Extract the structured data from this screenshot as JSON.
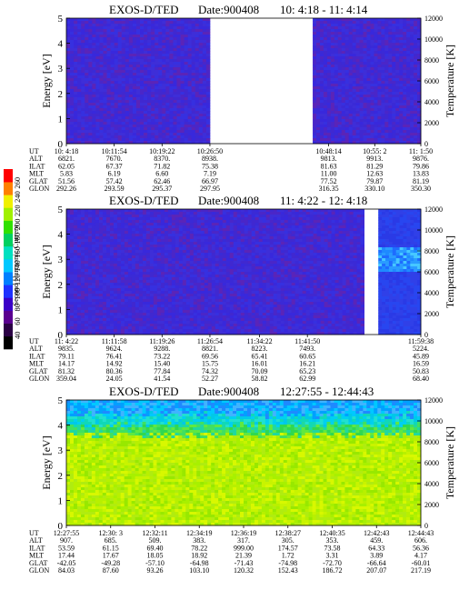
{
  "chart_data": [
    {
      "type": "heatmap",
      "title": "EXOS-D/TED",
      "date_label": "Date:900408",
      "time_range": "10: 4:18 - 11: 4:14",
      "ylabel": "Energy [eV]",
      "y2label": "Temperature [K]",
      "yticks": [
        "0",
        "1",
        "2",
        "3",
        "4",
        "5"
      ],
      "y2ticks": [
        "0",
        "2000",
        "4000",
        "6000",
        "8000",
        "10000",
        "12000"
      ],
      "ylim": [
        0,
        5
      ],
      "y2lim": [
        0,
        12000
      ],
      "data_segments": [
        {
          "from": 0.0,
          "to": 0.405,
          "profile": "low"
        },
        {
          "from": 0.695,
          "to": 1.0,
          "profile": "low"
        }
      ],
      "orbit": {
        "rows": [
          "UT",
          "ALT",
          "ILAT",
          "MLT",
          "GLAT",
          "GLON"
        ],
        "columns": [
          {
            "frac": 0.0,
            "values": [
              "10: 4:18",
              "6821.",
              "62.05",
              "5.83",
              "51.56",
              "292.26"
            ]
          },
          {
            "frac": 0.135,
            "values": [
              "10:11:54",
              "7670.",
              "67.37",
              "6.19",
              "57.42",
              "293.59"
            ]
          },
          {
            "frac": 0.27,
            "values": [
              "10:19:22",
              "8370.",
              "71.82",
              "6.60",
              "62.46",
              "295.37"
            ]
          },
          {
            "frac": 0.405,
            "values": [
              "10:26:50",
              "8938.",
              "75.38",
              "7.19",
              "66.97",
              "297.95"
            ]
          },
          {
            "frac": 0.74,
            "values": [
              "10:48:14",
              "9813.",
              "81.63",
              "11.00",
              "77.52",
              "316.35"
            ]
          },
          {
            "frac": 0.87,
            "values": [
              "10:55: 2",
              "9913.",
              "81.29",
              "12.63",
              "79.87",
              "330.10"
            ]
          },
          {
            "frac": 1.0,
            "values": [
              "11: 1:50",
              "9876.",
              "79.86",
              "13.83",
              "81.19",
              "350.30"
            ]
          }
        ]
      }
    },
    {
      "type": "heatmap",
      "title": "EXOS-D/TED",
      "date_label": "Date:900408",
      "time_range": "11: 4:22 - 12: 4:18",
      "ylabel": "Energy [eV]",
      "y2label": "Temperature [K]",
      "yticks": [
        "0",
        "1",
        "2",
        "3",
        "4",
        "5"
      ],
      "y2ticks": [
        "0",
        "2000",
        "4000",
        "6000",
        "8000",
        "10000",
        "12000"
      ],
      "ylim": [
        0,
        5
      ],
      "y2lim": [
        0,
        12000
      ],
      "data_segments": [
        {
          "from": 0.0,
          "to": 0.84,
          "profile": "low"
        },
        {
          "from": 0.88,
          "to": 1.0,
          "profile": "hot"
        }
      ],
      "orbit": {
        "rows": [
          "UT",
          "ALT",
          "ILAT",
          "MLT",
          "GLAT",
          "GLON"
        ],
        "columns": [
          {
            "frac": 0.0,
            "values": [
              "11: 4:22",
              "9835.",
              "79.11",
              "14.17",
              "81.32",
              "359.04"
            ]
          },
          {
            "frac": 0.135,
            "values": [
              "11:11:58",
              "9624.",
              "76.41",
              "14.92",
              "80.36",
              "24.05"
            ]
          },
          {
            "frac": 0.27,
            "values": [
              "11:19:26",
              "9288.",
              "73.22",
              "15.40",
              "77.84",
              "41.54"
            ]
          },
          {
            "frac": 0.405,
            "values": [
              "11:26:54",
              "8821.",
              "69.56",
              "15.75",
              "74.32",
              "52.27"
            ]
          },
          {
            "frac": 0.545,
            "values": [
              "11:34:22",
              "8223.",
              "65.41",
              "16.01",
              "70.09",
              "58.82"
            ]
          },
          {
            "frac": 0.68,
            "values": [
              "11:41:50",
              "7493.",
              "60.65",
              "16.21",
              "65.23",
              "62.99"
            ]
          },
          {
            "frac": 1.0,
            "values": [
              "11:59:38",
              "5224.",
              "45.89",
              "16.59",
              "50.83",
              "68.40"
            ]
          }
        ]
      }
    },
    {
      "type": "heatmap",
      "title": "EXOS-D/TED",
      "date_label": "Date:900408",
      "time_range": "12:27:55 - 12:44:43",
      "ylabel": "Energy [eV]",
      "y2label": "Temperature [K]",
      "yticks": [
        "0",
        "1",
        "2",
        "3",
        "4",
        "5"
      ],
      "y2ticks": [
        "0",
        "2000",
        "4000",
        "6000",
        "8000",
        "10000",
        "12000"
      ],
      "ylim": [
        0,
        5
      ],
      "y2lim": [
        0,
        12000
      ],
      "data_segments": [
        {
          "from": 0.0,
          "to": 1.0,
          "profile": "warm"
        }
      ],
      "orbit": {
        "rows": [
          "UT",
          "ALT",
          "ILAT",
          "MLT",
          "GLAT",
          "GLON"
        ],
        "columns": [
          {
            "frac": 0.0,
            "values": [
              "12:27:55",
              "907.",
              "53.59",
              "17.44",
              "-42.05",
              "84.03"
            ]
          },
          {
            "frac": 0.125,
            "values": [
              "12:30: 3",
              "685.",
              "61.15",
              "17.67",
              "-49.28",
              "87.60"
            ]
          },
          {
            "frac": 0.25,
            "values": [
              "12:32:11",
              "509.",
              "69.40",
              "18.05",
              "-57.10",
              "93.26"
            ]
          },
          {
            "frac": 0.375,
            "values": [
              "12:34:19",
              "383.",
              "78.22",
              "18.92",
              "-64.98",
              "103.10"
            ]
          },
          {
            "frac": 0.5,
            "values": [
              "12:36:19",
              "317.",
              "999.00",
              "21.39",
              "-71.43",
              "120.32"
            ]
          },
          {
            "frac": 0.625,
            "values": [
              "12:38:27",
              "305.",
              "174.57",
              "1.72",
              "-74.98",
              "152.43"
            ]
          },
          {
            "frac": 0.75,
            "values": [
              "12:40:35",
              "353.",
              "73.58",
              "3.31",
              "-72.70",
              "186.72"
            ]
          },
          {
            "frac": 0.875,
            "values": [
              "12:42:43",
              "459.",
              "64.33",
              "3.89",
              "-66.64",
              "207.07"
            ]
          },
          {
            "frac": 1.0,
            "values": [
              "12:44:43",
              "606.",
              "56.36",
              "4.17",
              "-60.01",
              "217.19"
            ]
          }
        ]
      }
    }
  ],
  "colorbar": {
    "label": "Second Harmonic Current",
    "ticks": [
      "40",
      "60",
      "80",
      "100",
      "120",
      "140",
      "160",
      "180",
      "200",
      "220",
      "240",
      "260"
    ],
    "colors": [
      "#000000",
      "#2a0044",
      "#5a0090",
      "#3a00c8",
      "#1e32ff",
      "#0080ff",
      "#00c8ff",
      "#00e0c0",
      "#00d060",
      "#30e000",
      "#a0f000",
      "#f0f000",
      "#ff8000",
      "#ff0000"
    ]
  }
}
